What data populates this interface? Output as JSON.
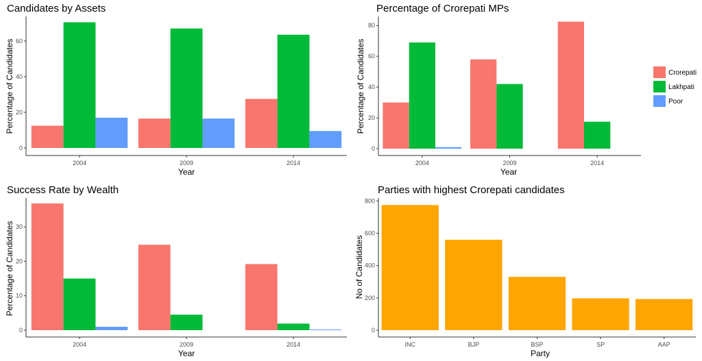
{
  "colors": {
    "Crorepati": "#F8766D",
    "Lakhpati": "#00BA38",
    "Poor": "#619CFF",
    "orange": "#FFA500",
    "axis": "#333333",
    "tick_text": "#4d4d4d"
  },
  "legend": {
    "placement": "right",
    "entries": [
      "Crorepati",
      "Lakhpati",
      "Poor"
    ]
  },
  "chart_data": [
    {
      "type": "bar",
      "title": "Candidates by Assets",
      "xlabel": "Year",
      "ylabel": "Percentage of Candidates",
      "categories": [
        "2004",
        "2009",
        "2014"
      ],
      "series": [
        {
          "name": "Crorepati",
          "values": [
            12.5,
            16.5,
            27.5
          ]
        },
        {
          "name": "Lakhpati",
          "values": [
            70.5,
            67,
            63.5
          ]
        },
        {
          "name": "Poor",
          "values": [
            17,
            16.5,
            9.5
          ]
        }
      ],
      "ylim": [
        0,
        73
      ],
      "yticks": [
        0,
        20,
        40,
        60
      ],
      "grid": false
    },
    {
      "type": "bar",
      "title": "Percentage of Crorepati MPs",
      "xlabel": "Year",
      "ylabel": "Percentage of Candidates",
      "categories": [
        "2004",
        "2009",
        "2014"
      ],
      "series": [
        {
          "name": "Crorepati",
          "values": [
            30,
            58,
            82.5
          ]
        },
        {
          "name": "Lakhpati",
          "values": [
            69,
            42,
            17.5
          ]
        },
        {
          "name": "Poor",
          "values": [
            1,
            0,
            0
          ]
        }
      ],
      "ylim": [
        0,
        85
      ],
      "yticks": [
        0,
        20,
        40,
        60,
        80
      ],
      "grid": false
    },
    {
      "type": "bar",
      "title": "Success Rate by Wealth",
      "xlabel": "Year",
      "ylabel": "Percentage of Candidates",
      "categories": [
        "2004",
        "2009",
        "2014"
      ],
      "series": [
        {
          "name": "Crorepati",
          "values": [
            36.8,
            24.8,
            19.2
          ]
        },
        {
          "name": "Lakhpati",
          "values": [
            15,
            4.5,
            1.9
          ]
        },
        {
          "name": "Poor",
          "values": [
            1,
            0,
            0.2
          ]
        }
      ],
      "ylim": [
        0,
        38
      ],
      "yticks": [
        0,
        10,
        20,
        30
      ],
      "grid": false
    },
    {
      "type": "bar",
      "title": "Parties with highest Crorepati candidates",
      "xlabel": "Party",
      "ylabel": "No of Candidates",
      "categories": [
        "INC",
        "BJP",
        "BSP",
        "SP",
        "AAP"
      ],
      "series": [
        {
          "values": [
            775,
            560,
            330,
            197,
            193
          ]
        }
      ],
      "ylim": [
        0,
        810
      ],
      "yticks": [
        0,
        200,
        400,
        600,
        800
      ],
      "grid": false
    }
  ]
}
